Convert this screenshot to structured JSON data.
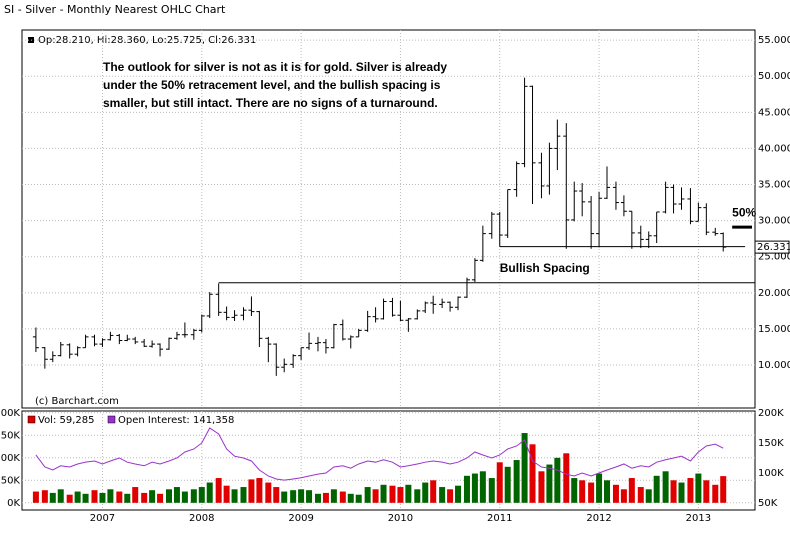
{
  "chart_data": [
    {
      "type": "ohlc",
      "title": "SI - Silver - Monthly Nearest OHLC Chart",
      "header": "Op:28.210, Hi:28.360, Lo:25.725, Cl:26.331",
      "credit": "(c) Barchart.com",
      "color": "#000000",
      "xlim": [
        2006.19,
        2013.57
      ],
      "xticks": [
        2007,
        2008,
        2009,
        2010,
        2011,
        2012,
        2013
      ],
      "ylim": [
        4.05,
        56.4
      ],
      "yticks": [
        {
          "value": 10,
          "label": "10.000"
        },
        {
          "value": 15,
          "label": "15.000"
        },
        {
          "value": 20,
          "label": "20.000"
        },
        {
          "value": 25,
          "label": "25.000"
        },
        {
          "value": 30,
          "label": "30.000"
        },
        {
          "value": 35,
          "label": "35.000"
        },
        {
          "value": 40,
          "label": "40.000"
        },
        {
          "value": 45,
          "label": "45.000"
        },
        {
          "value": 50,
          "label": "50.000"
        },
        {
          "value": 55,
          "label": "55.000"
        }
      ],
      "grid": true,
      "x": [
        2006.33,
        2006.42,
        2006.5,
        2006.58,
        2006.67,
        2006.75,
        2006.83,
        2006.92,
        2007,
        2007.08,
        2007.17,
        2007.25,
        2007.33,
        2007.42,
        2007.5,
        2007.58,
        2007.67,
        2007.75,
        2007.83,
        2007.92,
        2008,
        2008.08,
        2008.17,
        2008.25,
        2008.33,
        2008.42,
        2008.5,
        2008.58,
        2008.67,
        2008.75,
        2008.83,
        2008.92,
        2009,
        2009.08,
        2009.17,
        2009.25,
        2009.33,
        2009.42,
        2009.5,
        2009.58,
        2009.67,
        2009.75,
        2009.83,
        2009.92,
        2010,
        2010.08,
        2010.17,
        2010.25,
        2010.33,
        2010.42,
        2010.5,
        2010.58,
        2010.67,
        2010.75,
        2010.83,
        2010.92,
        2011,
        2011.08,
        2011.17,
        2011.25,
        2011.33,
        2011.42,
        2011.5,
        2011.58,
        2011.67,
        2011.75,
        2011.83,
        2011.92,
        2012,
        2012.08,
        2012.17,
        2012.25,
        2012.33,
        2012.42,
        2012.5,
        2012.58,
        2012.67,
        2012.75,
        2012.83,
        2012.92,
        2013,
        2013.08,
        2013.17,
        2013.25
      ],
      "open": [
        13.9,
        12.4,
        10.8,
        11.3,
        12.8,
        11.5,
        12.4,
        13.9,
        12.9,
        13.5,
        14.1,
        13.4,
        13.6,
        13.2,
        12.6,
        12.9,
        12.2,
        13.7,
        14.2,
        14.2,
        14.8,
        16.8,
        19.8,
        17.3,
        16.6,
        16.9,
        17.6,
        17.4,
        13.7,
        12.9,
        9.7,
        10.1,
        11.3,
        12.4,
        13.0,
        13.1,
        12.4,
        15.6,
        13.6,
        13.9,
        14.8,
        16.7,
        16.4,
        18.8,
        16.9,
        16.2,
        16.4,
        17.5,
        18.6,
        18.4,
        18.7,
        18.0,
        19.4,
        21.8,
        24.5,
        28.2,
        30.9,
        28.0,
        34.3,
        37.9,
        48.6,
        38.0,
        34.8,
        40.0,
        41.7,
        30.1,
        34.1,
        32.6,
        28.2,
        33.1,
        34.6,
        32.5,
        31.3,
        28.3,
        27.4,
        27.9,
        31.2,
        34.6,
        32.3,
        33.0,
        29.9,
        31.8,
        28.4,
        28.21
      ],
      "high": [
        15.2,
        12.5,
        11.9,
        13.2,
        13.0,
        12.6,
        14.2,
        14.2,
        13.7,
        14.6,
        14.3,
        14.2,
        13.9,
        13.6,
        13.4,
        13.0,
        13.8,
        14.6,
        15.9,
        15.0,
        17.0,
        20.1,
        21.3,
        18.1,
        17.6,
        18.0,
        19.5,
        17.5,
        13.9,
        13.0,
        10.9,
        11.5,
        12.4,
        14.5,
        13.9,
        13.6,
        15.7,
        16.3,
        14.1,
        15.0,
        17.5,
        18.0,
        19.2,
        19.3,
        18.9,
        16.5,
        17.7,
        18.8,
        19.6,
        19.2,
        18.8,
        19.5,
        22.1,
        24.8,
        29.3,
        31.2,
        31.2,
        34.3,
        38.2,
        49.8,
        48.7,
        39.4,
        40.8,
        44.0,
        43.5,
        35.4,
        35.2,
        33.4,
        34.0,
        37.5,
        35.4,
        33.5,
        31.3,
        29.3,
        28.5,
        31.2,
        35.4,
        35.0,
        34.6,
        34.5,
        32.5,
        32.4,
        29.0,
        28.36
      ],
      "low": [
        11.8,
        9.5,
        10.4,
        11.2,
        10.9,
        11.2,
        12.4,
        12.6,
        12.5,
        13.4,
        12.9,
        13.3,
        12.9,
        12.5,
        12.4,
        11.2,
        12.1,
        13.5,
        13.8,
        13.5,
        14.5,
        16.5,
        16.8,
        16.2,
        16.1,
        16.2,
        16.8,
        12.5,
        10.4,
        8.5,
        9.0,
        9.6,
        10.7,
        12.1,
        11.9,
        11.6,
        12.3,
        13.4,
        12.3,
        13.9,
        14.6,
        15.9,
        16.3,
        16.7,
        16.1,
        14.6,
        16.3,
        17.2,
        17.1,
        17.9,
        17.4,
        17.6,
        19.3,
        21.5,
        24.3,
        27.5,
        26.4,
        27.6,
        33.3,
        37.4,
        32.3,
        33.1,
        33.6,
        37.0,
        26.1,
        29.9,
        30.6,
        26.1,
        26.3,
        33.0,
        31.5,
        30.6,
        26.1,
        26.2,
        26.2,
        26.9,
        31.0,
        31.0,
        31.5,
        29.5,
        29.9,
        28.0,
        27.9,
        25.725
      ],
      "close": [
        12.4,
        10.8,
        11.3,
        12.8,
        11.5,
        12.4,
        13.9,
        12.9,
        13.5,
        14.1,
        13.4,
        13.6,
        13.2,
        12.6,
        12.9,
        12.2,
        13.7,
        14.2,
        14.2,
        14.8,
        16.8,
        19.8,
        17.3,
        16.6,
        16.9,
        17.6,
        17.4,
        13.7,
        12.9,
        9.7,
        10.1,
        11.3,
        12.4,
        13.0,
        13.1,
        12.4,
        15.6,
        13.6,
        13.9,
        14.8,
        16.7,
        16.4,
        18.8,
        16.9,
        16.2,
        16.4,
        17.5,
        18.6,
        18.4,
        18.7,
        18.0,
        19.4,
        21.8,
        24.5,
        28.2,
        30.9,
        28.0,
        34.3,
        37.9,
        48.6,
        38.0,
        34.8,
        40.0,
        41.7,
        30.1,
        34.1,
        32.6,
        28.2,
        33.1,
        34.6,
        32.5,
        31.3,
        28.3,
        27.4,
        27.9,
        31.2,
        34.6,
        32.3,
        33.0,
        29.9,
        31.8,
        28.4,
        28.2,
        26.331
      ],
      "last_label": {
        "value": 26.331,
        "label": "26.331"
      },
      "annotations": [
        {
          "lines": [
            "The outlook for silver is not as it is for gold.  Silver is already",
            "under the 50% retracement level, and the bullish spacing is",
            "smaller, but still intact.  There are no signs of a turnaround."
          ]
        },
        {
          "text": "Bullish Spacing",
          "y": 21.4,
          "x": [
            2008.17,
            2013.57
          ]
        },
        {
          "y": 26.4,
          "x": [
            2011.0,
            2013.47
          ]
        },
        {
          "text": "50%",
          "y": 29.1,
          "x": [
            2013.34,
            2013.54
          ]
        }
      ]
    },
    {
      "type": "bar",
      "ylim": [
        -16,
        204
      ],
      "yticks": [
        {
          "value": 0,
          "label": "0K"
        },
        {
          "value": 50,
          "label": "50K"
        },
        {
          "value": 100,
          "label": "100K"
        },
        {
          "value": 150,
          "label": "150K"
        },
        {
          "value": 200,
          "label": "200K"
        }
      ],
      "y2lim": [
        38.3,
        203.3
      ],
      "y2ticks": [
        {
          "value": 50,
          "label": "50K"
        },
        {
          "value": 100,
          "label": "100K"
        },
        {
          "value": 150,
          "label": "150K"
        },
        {
          "value": 200,
          "label": "200K"
        }
      ],
      "up_color": "#006400",
      "series": [
        {
          "name": "Vol: 59,285",
          "color": "#e00000",
          "values": [
            25,
            28,
            22,
            30,
            18,
            25,
            20,
            28,
            22,
            30,
            25,
            20,
            35,
            22,
            28,
            20,
            30,
            35,
            25,
            30,
            35,
            45,
            55,
            38,
            30,
            35,
            52,
            55,
            45,
            35,
            25,
            28,
            30,
            28,
            20,
            22,
            30,
            25,
            20,
            18,
            35,
            30,
            40,
            38,
            35,
            40,
            30,
            45,
            50,
            35,
            30,
            38,
            60,
            65,
            70,
            55,
            90,
            80,
            95,
            155,
            130,
            70,
            85,
            100,
            110,
            55,
            50,
            45,
            65,
            50,
            40,
            30,
            55,
            35,
            30,
            60,
            70,
            50,
            45,
            55,
            65,
            50,
            40,
            59.285
          ]
        },
        {
          "name": "Open Interest: 141,358",
          "color": "#9933cc",
          "axis": "y2",
          "type": "line",
          "values": [
            130,
            110,
            105,
            112,
            110,
            115,
            118,
            120,
            115,
            120,
            125,
            118,
            115,
            112,
            118,
            115,
            120,
            125,
            135,
            140,
            150,
            175,
            165,
            140,
            128,
            125,
            120,
            105,
            95,
            90,
            88,
            90,
            92,
            95,
            98,
            100,
            110,
            112,
            108,
            115,
            120,
            118,
            122,
            118,
            110,
            112,
            115,
            118,
            120,
            118,
            115,
            118,
            125,
            135,
            130,
            125,
            130,
            140,
            145,
            155,
            120,
            110,
            108,
            105,
            98,
            95,
            100,
            95,
            100,
            105,
            110,
            115,
            108,
            112,
            110,
            118,
            122,
            125,
            128,
            120,
            135,
            145,
            148,
            141.358
          ]
        }
      ]
    }
  ]
}
